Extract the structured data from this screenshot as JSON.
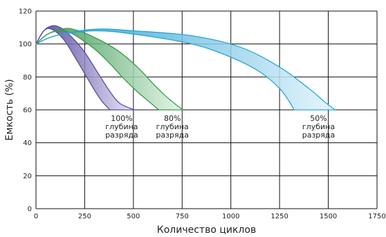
{
  "chart_data": {
    "type": "area",
    "xlabel": "Количество циклов",
    "ylabel": "Емкость (%)",
    "xlim": [
      0,
      1750
    ],
    "ylim": [
      0,
      120
    ],
    "x_ticks": [
      0,
      250,
      500,
      750,
      1000,
      1250,
      1500,
      1750
    ],
    "y_ticks": [
      0,
      20,
      40,
      60,
      80,
      100,
      120
    ],
    "grid": true,
    "series": [
      {
        "label_lines": [
          "100%",
          "глубина",
          "разряда"
        ],
        "color": "#5b4ba8",
        "fill_start": "#3a2c8c",
        "fill_end": "#e6e2f5",
        "upper": [
          [
            0,
            100
          ],
          [
            40,
            108
          ],
          [
            80,
            111
          ],
          [
            125,
            110
          ],
          [
            185,
            104
          ],
          [
            250,
            95
          ],
          [
            320,
            82
          ],
          [
            380,
            71
          ],
          [
            430,
            64
          ],
          [
            505,
            60
          ]
        ],
        "lower": [
          [
            0,
            100
          ],
          [
            40,
            108
          ],
          [
            80,
            109
          ],
          [
            140,
            103
          ],
          [
            200,
            92
          ],
          [
            260,
            80
          ],
          [
            300,
            72
          ],
          [
            340,
            65
          ],
          [
            380,
            60
          ]
        ],
        "label_x": 440,
        "label_y_lines": [
          55,
          50,
          45
        ]
      },
      {
        "label_lines": [
          "80%",
          "глубина",
          "разряда"
        ],
        "color": "#3a9a4a",
        "fill_start": "#1e8a3c",
        "fill_end": "#e2f3e4",
        "upper": [
          [
            0,
            100
          ],
          [
            60,
            106
          ],
          [
            130,
            109
          ],
          [
            190,
            109
          ],
          [
            300,
            104
          ],
          [
            420,
            96
          ],
          [
            520,
            86
          ],
          [
            600,
            76
          ],
          [
            660,
            69
          ],
          [
            720,
            63
          ],
          [
            755,
            60
          ]
        ],
        "lower": [
          [
            0,
            100
          ],
          [
            60,
            106
          ],
          [
            130,
            108
          ],
          [
            190,
            106
          ],
          [
            300,
            97
          ],
          [
            380,
            88
          ],
          [
            450,
            79
          ],
          [
            520,
            71
          ],
          [
            580,
            65
          ],
          [
            630,
            60
          ]
        ],
        "label_x": 700,
        "label_y_lines": [
          55,
          50,
          45
        ]
      },
      {
        "label_lines": [
          "50%",
          "глубина",
          "разряда"
        ],
        "color": "#2aa5d5",
        "fill_start": "#0f93cc",
        "fill_end": "#e3f4fb",
        "upper": [
          [
            0,
            100
          ],
          [
            100,
            105
          ],
          [
            300,
            109
          ],
          [
            500,
            108
          ],
          [
            800,
            105
          ],
          [
            1050,
            98
          ],
          [
            1250,
            86
          ],
          [
            1400,
            73
          ],
          [
            1480,
            65
          ],
          [
            1535,
            60
          ]
        ],
        "lower": [
          [
            0,
            100
          ],
          [
            100,
            105
          ],
          [
            300,
            108
          ],
          [
            500,
            106
          ],
          [
            800,
            100
          ],
          [
            1000,
            92
          ],
          [
            1150,
            83
          ],
          [
            1250,
            73
          ],
          [
            1300,
            65
          ],
          [
            1325,
            60
          ]
        ],
        "label_x": 1450,
        "label_y_lines": [
          55,
          50,
          45
        ]
      }
    ]
  }
}
